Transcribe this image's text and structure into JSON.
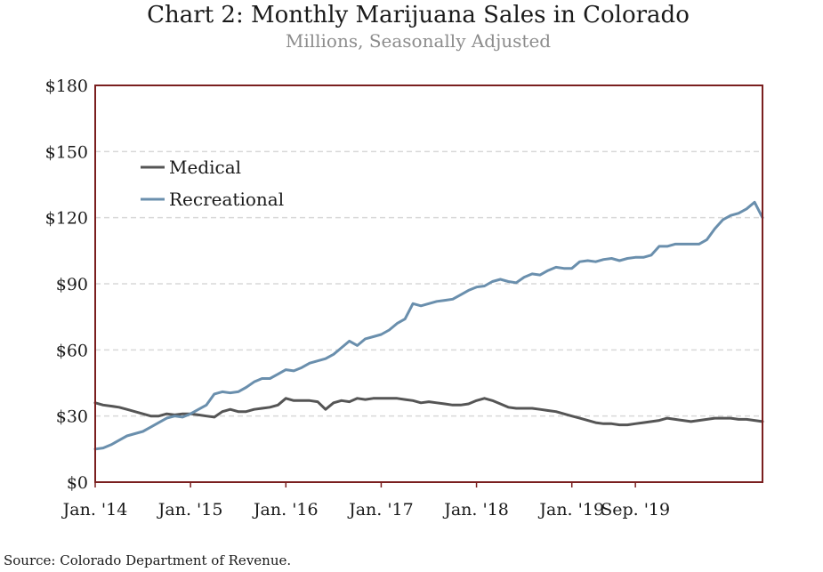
{
  "title": "Chart 2: Monthly Marijuana Sales in Colorado",
  "subtitle": "Millions, Seasonally Adjusted",
  "source": "Source: Colorado Department of Revenue.",
  "colors": {
    "medical": "#555555",
    "recreational": "#6a8fad",
    "frame": "#7a1f1f",
    "grid": "#d9d9d9"
  },
  "chart_data": {
    "type": "line",
    "title": "Chart 2: Monthly Marijuana Sales in Colorado",
    "subtitle": "Millions, Seasonally Adjusted",
    "ylim": [
      0,
      180
    ],
    "yticks": [
      "$0",
      "$30",
      "$60",
      "$90",
      "$120",
      "$150",
      "$180"
    ],
    "ytick_values": [
      0,
      30,
      60,
      90,
      120,
      150,
      180
    ],
    "xticks": [
      "Jan. '14",
      "Jan. '15",
      "Jan. '16",
      "Jan. '17",
      "Jan. '18",
      "Jan. '19",
      "Sep. '19"
    ],
    "x_start": "2014-01",
    "x_end": "2019-09",
    "grid": true,
    "legend_position": "top-left",
    "series": [
      {
        "name": "Medical",
        "values": [
          36,
          35,
          34.5,
          34,
          33,
          32,
          31,
          30,
          30,
          31,
          30.5,
          31,
          31,
          30.5,
          30,
          29.5,
          32,
          33,
          32,
          32,
          33,
          33.5,
          34,
          35,
          38,
          37,
          37,
          37,
          36.5,
          33,
          36,
          37,
          36.5,
          38,
          37.5,
          38,
          38,
          38,
          38,
          37.5,
          37,
          36,
          36.5,
          36,
          35.5,
          35,
          35,
          35.5,
          37,
          38,
          37,
          35.5,
          34,
          33.5,
          33.5,
          33.5,
          33,
          32.5,
          32,
          31,
          30,
          29,
          28,
          27,
          26.5,
          26.5,
          26,
          26,
          26.5,
          27,
          27.5,
          28,
          29,
          28.5,
          28,
          27.5,
          28,
          28.5,
          29,
          29,
          29,
          28.5,
          28.5,
          28,
          27.5
        ]
      },
      {
        "name": "Recreational",
        "values": [
          15,
          15.5,
          17,
          19,
          21,
          22,
          23,
          25,
          27,
          29,
          30,
          29.5,
          31,
          33,
          35,
          40,
          41,
          40.5,
          41,
          43,
          45.5,
          47,
          47,
          49,
          51,
          50.5,
          52,
          54,
          55,
          56,
          58,
          61,
          64,
          62,
          65,
          66,
          67,
          69,
          72,
          74,
          81,
          80,
          81,
          82,
          82.5,
          83,
          85,
          87,
          88.5,
          89,
          91,
          92,
          91,
          90.5,
          93,
          94.5,
          94,
          96,
          97.5,
          97,
          97,
          100,
          100.5,
          100,
          101,
          101.5,
          100.5,
          101.5,
          102,
          102,
          103,
          107,
          107,
          108,
          108,
          108,
          108,
          110,
          115,
          119,
          121,
          122,
          124,
          127,
          120
        ]
      }
    ]
  }
}
